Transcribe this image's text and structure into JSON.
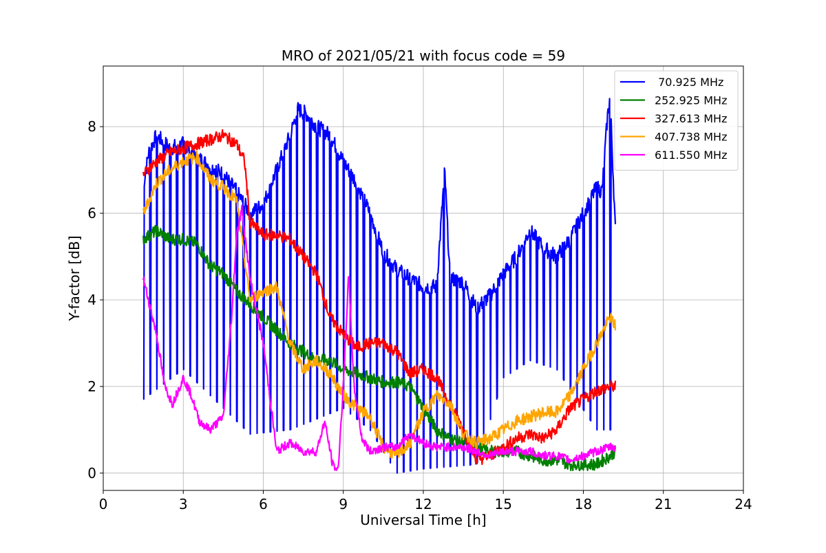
{
  "chart_data": {
    "type": "line",
    "title": "MRO of 2021/05/21 with focus code = 59",
    "xlabel": "Universal Time [h]",
    "ylabel": "Y-factor [dB]",
    "xlim": [
      0,
      24
    ],
    "ylim": [
      -0.4,
      9.4
    ],
    "xticks": [
      0,
      3,
      6,
      9,
      12,
      15,
      18,
      21,
      24
    ],
    "yticks": [
      0,
      2,
      4,
      6,
      8
    ],
    "grid": true,
    "legend_position": "top-right",
    "series": [
      {
        "name": " 70.925 MHz",
        "color": "#0000ff",
        "dips": {
          "start": 1.5,
          "end": 19.2,
          "interval": 0.25,
          "floor": [
            [
              1.5,
              1.7
            ],
            [
              3,
              2.4
            ],
            [
              4.5,
              1.5
            ],
            [
              5.5,
              0.9
            ],
            [
              7,
              1.0
            ],
            [
              9,
              1.5
            ],
            [
              10,
              1.0
            ],
            [
              11,
              0.0
            ],
            [
              12,
              0.1
            ],
            [
              14,
              0.2
            ],
            [
              15,
              2.2
            ],
            [
              16,
              2.6
            ],
            [
              17,
              2.4
            ],
            [
              18.5,
              1.0
            ],
            [
              19.2,
              1.0
            ]
          ]
        },
        "x": [
          1.5,
          1.7,
          2.0,
          2.5,
          3.0,
          3.5,
          4.0,
          4.5,
          5.0,
          5.5,
          6.0,
          6.5,
          7.0,
          7.3,
          7.6,
          8.0,
          8.5,
          9.0,
          9.5,
          10.0,
          10.5,
          11.0,
          11.5,
          12.0,
          12.5,
          12.8,
          13.0,
          13.5,
          14.0,
          14.5,
          15.0,
          15.5,
          16.0,
          16.5,
          17.0,
          17.5,
          18.0,
          18.5,
          18.7,
          18.9,
          19.0,
          19.2
        ],
        "y": [
          6.6,
          7.4,
          7.8,
          7.5,
          7.6,
          7.3,
          7.1,
          6.9,
          6.5,
          6.0,
          6.2,
          7.0,
          7.8,
          8.4,
          8.3,
          8.0,
          7.8,
          7.2,
          6.7,
          6.0,
          5.1,
          4.7,
          4.5,
          4.3,
          4.3,
          7.0,
          4.5,
          4.4,
          3.8,
          4.1,
          4.6,
          5.0,
          5.6,
          5.2,
          5.0,
          5.4,
          6.0,
          6.6,
          6.5,
          8.2,
          8.7,
          5.6
        ]
      },
      {
        "name": "252.925 MHz",
        "color": "#008000",
        "x": [
          1.5,
          2.0,
          2.5,
          3.0,
          3.5,
          4.0,
          4.5,
          5.0,
          5.5,
          6.0,
          6.5,
          7.0,
          7.5,
          8.0,
          8.5,
          9.0,
          9.5,
          10.0,
          10.5,
          11.0,
          11.5,
          12.0,
          12.5,
          13.0,
          13.5,
          14.0,
          14.5,
          15.0,
          15.5,
          16.0,
          16.5,
          17.0,
          17.5,
          18.0,
          18.5,
          19.0,
          19.2
        ],
        "y": [
          5.4,
          5.6,
          5.4,
          5.4,
          5.3,
          4.8,
          4.6,
          4.2,
          3.9,
          3.6,
          3.3,
          3.0,
          2.8,
          2.6,
          2.6,
          2.4,
          2.3,
          2.2,
          2.1,
          2.1,
          2.0,
          1.5,
          1.0,
          0.8,
          0.7,
          0.6,
          0.5,
          0.5,
          0.5,
          0.4,
          0.3,
          0.3,
          0.2,
          0.2,
          0.2,
          0.4,
          0.5
        ]
      },
      {
        "name": "327.613 MHz",
        "color": "#ff0000",
        "x": [
          1.5,
          2.0,
          2.5,
          3.0,
          3.5,
          4.0,
          4.5,
          5.0,
          5.3,
          5.5,
          6.0,
          6.5,
          7.0,
          7.5,
          8.0,
          8.5,
          9.0,
          9.5,
          10.0,
          10.5,
          11.0,
          11.5,
          12.0,
          12.5,
          13.0,
          13.5,
          14.0,
          14.5,
          15.0,
          15.5,
          16.0,
          16.5,
          17.0,
          17.5,
          18.0,
          18.5,
          19.0,
          19.2
        ],
        "y": [
          6.9,
          7.2,
          7.4,
          7.5,
          7.6,
          7.7,
          7.8,
          7.6,
          7.2,
          5.8,
          5.5,
          5.5,
          5.4,
          5.0,
          4.6,
          3.6,
          3.2,
          2.9,
          3.0,
          3.0,
          2.8,
          2.3,
          2.4,
          2.2,
          1.6,
          1.0,
          0.3,
          0.4,
          0.6,
          0.8,
          0.9,
          0.8,
          1.0,
          1.5,
          1.7,
          1.9,
          2.0,
          2.0
        ]
      },
      {
        "name": "407.738 MHz",
        "color": "#ffa500",
        "x": [
          1.5,
          2.0,
          2.5,
          3.0,
          3.5,
          4.0,
          4.5,
          5.0,
          5.5,
          6.0,
          6.5,
          7.0,
          7.5,
          8.0,
          8.5,
          9.0,
          9.5,
          10.0,
          10.5,
          11.0,
          11.5,
          12.0,
          12.5,
          13.0,
          13.5,
          14.0,
          14.5,
          15.0,
          15.5,
          16.0,
          16.5,
          17.0,
          17.5,
          18.0,
          18.5,
          19.0,
          19.2
        ],
        "y": [
          6.0,
          6.7,
          7.0,
          7.2,
          7.3,
          6.8,
          6.6,
          6.3,
          4.0,
          4.2,
          4.3,
          3.0,
          2.4,
          2.6,
          2.3,
          1.8,
          1.5,
          1.3,
          0.6,
          0.4,
          0.7,
          1.4,
          1.8,
          1.6,
          0.9,
          0.7,
          0.8,
          1.0,
          1.2,
          1.3,
          1.4,
          1.4,
          1.8,
          2.4,
          3.0,
          3.6,
          3.4
        ]
      },
      {
        "name": "611.550 MHz",
        "color": "#ff00ff",
        "x": [
          1.5,
          2.0,
          2.3,
          2.6,
          3.0,
          3.3,
          3.6,
          4.0,
          4.5,
          4.8,
          5.0,
          5.2,
          5.5,
          6.0,
          6.3,
          6.5,
          7.0,
          7.5,
          8.0,
          8.3,
          8.6,
          8.8,
          9.0,
          9.2,
          9.4,
          9.7,
          10.0,
          10.5,
          11.0,
          11.5,
          12.0,
          12.5,
          13.0,
          13.5,
          14.0,
          14.5,
          15.0,
          15.5,
          16.0,
          16.5,
          17.0,
          17.5,
          18.0,
          18.5,
          19.0,
          19.2
        ],
        "y": [
          4.5,
          3.2,
          2.0,
          1.6,
          2.2,
          1.8,
          1.2,
          1.0,
          1.3,
          3.5,
          5.5,
          6.1,
          4.5,
          3.0,
          1.5,
          0.5,
          0.7,
          0.5,
          0.5,
          1.2,
          0.2,
          0.05,
          2.0,
          4.6,
          2.0,
          0.8,
          0.5,
          0.6,
          0.6,
          0.9,
          0.7,
          0.6,
          0.6,
          0.6,
          0.5,
          0.4,
          0.5,
          0.5,
          0.5,
          0.4,
          0.4,
          0.3,
          0.4,
          0.5,
          0.6,
          0.6
        ]
      }
    ]
  }
}
